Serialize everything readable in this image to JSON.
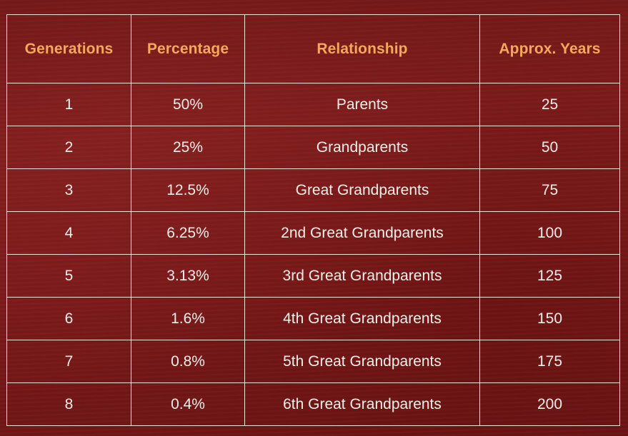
{
  "table": {
    "headers": [
      "Generations",
      "Percentage",
      "Relationship",
      "Approx. Years"
    ],
    "rows": [
      {
        "generation": "1",
        "percentage": "50%",
        "relationship": "Parents",
        "years": "25"
      },
      {
        "generation": "2",
        "percentage": "25%",
        "relationship": "Grandparents",
        "years": "50"
      },
      {
        "generation": "3",
        "percentage": "12.5%",
        "relationship": "Great Grandparents",
        "years": "75"
      },
      {
        "generation": "4",
        "percentage": "6.25%",
        "relationship": "2nd Great Grandparents",
        "years": "100"
      },
      {
        "generation": "5",
        "percentage": "3.13%",
        "relationship": "3rd Great Grandparents",
        "years": "125"
      },
      {
        "generation": "6",
        "percentage": "1.6%",
        "relationship": "4th Great Grandparents",
        "years": "150"
      },
      {
        "generation": "7",
        "percentage": "0.8%",
        "relationship": "5th Great Grandparents",
        "years": "175"
      },
      {
        "generation": "8",
        "percentage": "0.4%",
        "relationship": "6th Great Grandparents",
        "years": "200"
      }
    ]
  },
  "colors": {
    "background": "#7a1a1a",
    "header_text": "#f4a85c",
    "body_text": "#f6ede8",
    "grid_lines": "#f1e4dc"
  }
}
